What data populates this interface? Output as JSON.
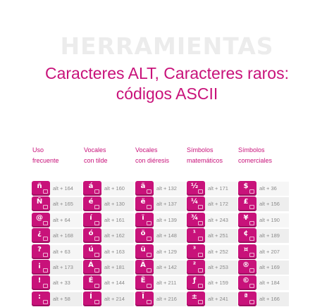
{
  "page": {
    "watermark": "HERRAMIENTAS",
    "title_line1": "Caracteres ALT, Caracteres raros:",
    "title_line2": "códigos ASCII"
  },
  "columns": [
    {
      "header1": "Uso",
      "header2": "frecuente"
    },
    {
      "header1": "Vocales",
      "header2": "con tilde"
    },
    {
      "header1": "Vocales",
      "header2": "con diéresis"
    },
    {
      "header1": "Símbolos",
      "header2": "matemáticos"
    },
    {
      "header1": "Símbolos",
      "header2": "comerciales"
    }
  ],
  "rows": [
    [
      {
        "char": "ñ",
        "code": "alt + 164"
      },
      {
        "char": "á",
        "code": "alt + 160"
      },
      {
        "char": "ä",
        "code": "alt + 132"
      },
      {
        "char": "½",
        "code": "alt + 171"
      },
      {
        "char": "$",
        "code": "alt + 36"
      }
    ],
    [
      {
        "char": "Ñ",
        "code": "alt + 165"
      },
      {
        "char": "é",
        "code": "alt + 130"
      },
      {
        "char": "ë",
        "code": "alt + 137"
      },
      {
        "char": "¼",
        "code": "alt + 172"
      },
      {
        "char": "£",
        "code": "alt + 156"
      }
    ],
    [
      {
        "char": "@",
        "code": "alt + 64"
      },
      {
        "char": "í",
        "code": "alt + 161"
      },
      {
        "char": "ï",
        "code": "alt + 139"
      },
      {
        "char": "¾",
        "code": "alt + 243"
      },
      {
        "char": "¥",
        "code": "alt + 190"
      }
    ],
    [
      {
        "char": "¿",
        "code": "alt + 168"
      },
      {
        "char": "ó",
        "code": "alt + 162"
      },
      {
        "char": "ö",
        "code": "alt + 148"
      },
      {
        "char": "¹",
        "code": "alt + 251"
      },
      {
        "char": "¢",
        "code": "alt + 189"
      }
    ],
    [
      {
        "char": "?",
        "code": "alt + 63"
      },
      {
        "char": "ú",
        "code": "alt + 163"
      },
      {
        "char": "ü",
        "code": "alt + 129"
      },
      {
        "char": "³",
        "code": "alt + 252"
      },
      {
        "char": "¤",
        "code": "alt + 207"
      }
    ],
    [
      {
        "char": "¡",
        "code": "alt + 173"
      },
      {
        "char": "Á",
        "code": "alt + 181"
      },
      {
        "char": "Ä",
        "code": "alt + 142"
      },
      {
        "char": "²",
        "code": "alt + 253"
      },
      {
        "char": "®",
        "code": "alt + 169"
      }
    ],
    [
      {
        "char": "!",
        "code": "alt + 33"
      },
      {
        "char": "É",
        "code": "alt + 144"
      },
      {
        "char": "Ë",
        "code": "alt + 211"
      },
      {
        "char": "ƒ",
        "code": "alt + 159"
      },
      {
        "char": "©",
        "code": "alt + 184"
      }
    ],
    [
      {
        "char": ":",
        "code": "alt + 58"
      },
      {
        "char": "Í",
        "code": "alt + 214"
      },
      {
        "char": "Ï",
        "code": "alt + 216"
      },
      {
        "char": "±",
        "code": "alt + 241"
      },
      {
        "char": "ª",
        "code": "alt + 166"
      }
    ]
  ]
}
